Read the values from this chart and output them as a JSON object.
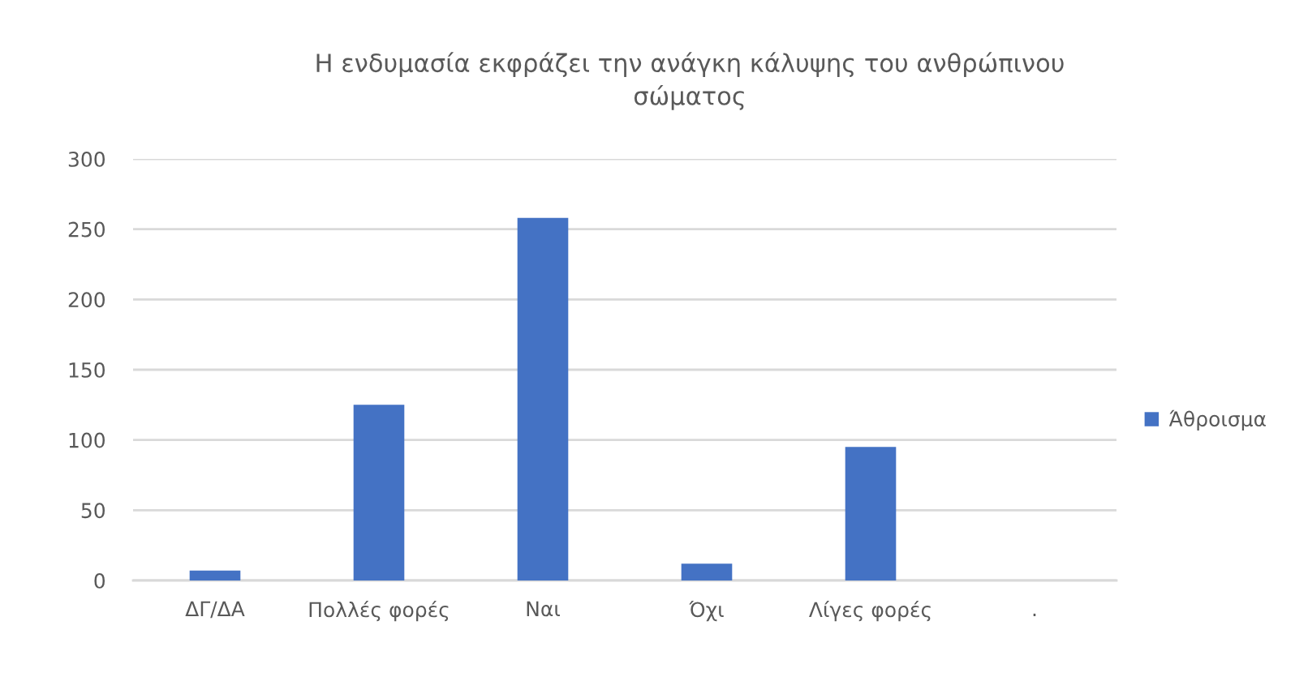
{
  "chart_data": {
    "type": "bar",
    "title": "Η ενδυμασία εκφράζει την ανάγκη κάλυψης του ανθρώπινου σώματος",
    "categories": [
      "ΔΓ/ΔΑ",
      "Πολλές φορές",
      "Ναι",
      "Όχι",
      "Λίγες φορές",
      "."
    ],
    "series": [
      {
        "name": "Άθροισμα",
        "color": "#4472c4",
        "values": [
          7,
          125,
          258,
          12,
          95,
          null
        ]
      }
    ],
    "ylim": [
      0,
      300
    ],
    "yticks": [
      0,
      50,
      100,
      150,
      200,
      250,
      300
    ],
    "grid": "y",
    "legend": "right"
  }
}
